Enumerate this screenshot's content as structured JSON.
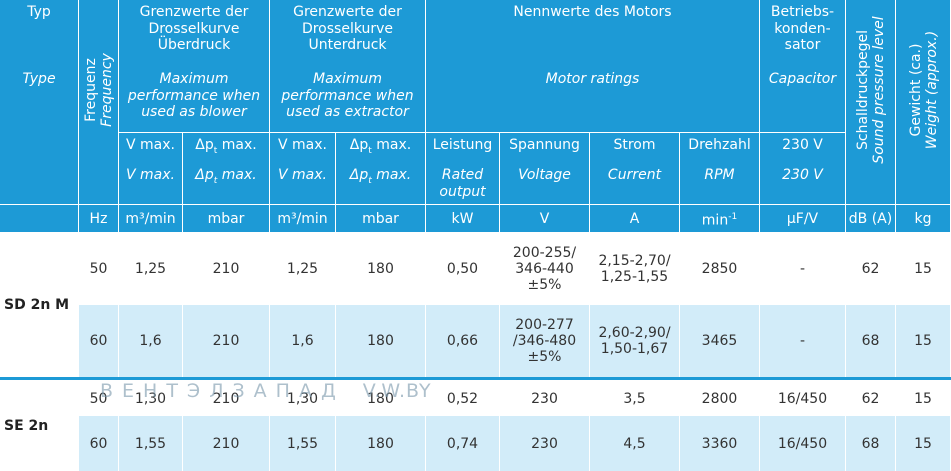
{
  "header": {
    "typ": {
      "de": "Typ",
      "en": "Type"
    },
    "frequency": {
      "de": "Frequenz",
      "en": "Frequency"
    },
    "blower": {
      "de": [
        "Grenzwerte der",
        "Drosselkurve",
        "Überdruck"
      ],
      "en": [
        "Maximum",
        "performance when",
        "used as blower"
      ]
    },
    "extractor": {
      "de": [
        "Grenzwerte der",
        "Drosselkurve",
        "Unterdruck"
      ],
      "en": [
        "Maximum",
        "performance when",
        "used as extractor"
      ]
    },
    "motor": {
      "de": [
        "Nennwerte des Motors"
      ],
      "en": [
        "Motor ratings"
      ]
    },
    "capacitor": {
      "de": [
        "Betriebs-",
        "konden-",
        "sator"
      ],
      "en": [
        "Capacitor"
      ]
    },
    "sound": {
      "de": "Schalldruckpegel",
      "en": "Sound pressure level"
    },
    "weight": {
      "de": "Gewicht (ca.)",
      "en": "Weight (approx.)"
    },
    "subheaders": [
      {
        "de": [
          "V max."
        ],
        "en": [
          "V max."
        ]
      },
      {
        "de": {
          "main": "Δp",
          "sub": "t",
          "after": " max."
        },
        "en": {
          "main": "Δp",
          "sub": "t",
          "after": " max."
        }
      },
      {
        "de": [
          "V max."
        ],
        "en": [
          "V max."
        ]
      },
      {
        "de": {
          "main": "Δp",
          "sub": "t",
          "after": " max."
        },
        "en": {
          "main": "Δp",
          "sub": "t",
          "after": " max."
        }
      },
      {
        "de": [
          "Leistung"
        ],
        "en": [
          "Rated",
          "output"
        ]
      },
      {
        "de": [
          "Spannung"
        ],
        "en": [
          "Voltage"
        ]
      },
      {
        "de": [
          "Strom"
        ],
        "en": [
          "Current"
        ]
      },
      {
        "de": [
          "Drehzahl"
        ],
        "en": [
          "RPM"
        ]
      },
      {
        "de": [
          "230 V"
        ],
        "en": [
          "230 V"
        ]
      }
    ],
    "units": [
      "Hz",
      "m³/min",
      "mbar",
      "m³/min",
      "mbar",
      "kW",
      "V",
      "A",
      {
        "main": "min",
        "sup": "-1"
      },
      "µF/V",
      "dB (A)",
      "kg"
    ]
  },
  "table": {
    "groups": [
      {
        "type": "SD 2n M",
        "rows": [
          [
            [
              "50"
            ],
            [
              "1,25"
            ],
            [
              "210"
            ],
            [
              "1,25"
            ],
            [
              "180"
            ],
            [
              "0,50"
            ],
            [
              "200-255/",
              "346-440",
              "±5%"
            ],
            [
              "2,15-2,70/",
              "1,25-1,55"
            ],
            [
              "2850"
            ],
            [
              "-"
            ],
            [
              "62"
            ],
            [
              "15"
            ]
          ],
          [
            [
              "60"
            ],
            [
              "1,6"
            ],
            [
              "210"
            ],
            [
              "1,6"
            ],
            [
              "180"
            ],
            [
              "0,66"
            ],
            [
              "200-277",
              "/346-480",
              "±5%"
            ],
            [
              "2,60-2,90/",
              "1,50-1,67"
            ],
            [
              "3465"
            ],
            [
              "-"
            ],
            [
              "68"
            ],
            [
              "15"
            ]
          ]
        ]
      },
      {
        "type": "SE 2n",
        "rows": [
          [
            [
              "50"
            ],
            [
              "1,30"
            ],
            [
              "210"
            ],
            [
              "1,30"
            ],
            [
              "180"
            ],
            [
              "0,52"
            ],
            [
              "230"
            ],
            [
              "3,5"
            ],
            [
              "2800"
            ],
            [
              "16/450"
            ],
            [
              "62"
            ],
            [
              "15"
            ]
          ],
          [
            [
              "60"
            ],
            [
              "1,55"
            ],
            [
              "210"
            ],
            [
              "1,55"
            ],
            [
              "180"
            ],
            [
              "0,74"
            ],
            [
              "230"
            ],
            [
              "4,5"
            ],
            [
              "3360"
            ],
            [
              "16/450"
            ],
            [
              "68"
            ],
            [
              "15"
            ]
          ]
        ]
      }
    ]
  },
  "watermark": {
    "brand": "ВЕНТЭЛЗАПАД",
    "site": "V.W.BY"
  }
}
